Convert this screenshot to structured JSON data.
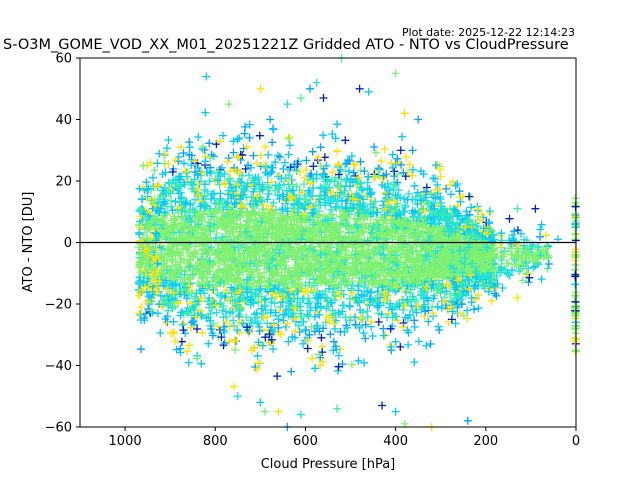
{
  "chart_data": {
    "type": "scatter",
    "plot_date": "Plot date: 2025-12-22 12:14:23",
    "title": "S-O3M_GOME_VOD_XX_M01_20251221Z Gridded ATO - NTO vs CloudPressure",
    "xlabel": "Cloud Pressure [hPa]",
    "ylabel": "ATO - NTO [DU]",
    "xlim": [
      1100,
      0
    ],
    "ylim": [
      -60,
      60
    ],
    "xticks": [
      1000,
      800,
      600,
      400,
      200,
      0
    ],
    "yticks": [
      60,
      40,
      20,
      0,
      -20,
      -40,
      -60
    ],
    "reference_line_y": 0,
    "grid": false,
    "marker": "plus",
    "colors": [
      "#00c8ff",
      "#20e0d8",
      "#80f070",
      "#ffe000",
      "#00a0ff",
      "#0020c0",
      "#40f0a0"
    ],
    "density_profile": [
      {
        "x": 960,
        "ymin": -22,
        "ymax": 18
      },
      {
        "x": 900,
        "ymin": -26,
        "ymax": 24
      },
      {
        "x": 800,
        "ymin": -30,
        "ymax": 26
      },
      {
        "x": 700,
        "ymin": -30,
        "ymax": 26
      },
      {
        "x": 600,
        "ymin": -30,
        "ymax": 24
      },
      {
        "x": 500,
        "ymin": -28,
        "ymax": 24
      },
      {
        "x": 400,
        "ymin": -28,
        "ymax": 22
      },
      {
        "x": 300,
        "ymin": -22,
        "ymax": 16
      },
      {
        "x": 200,
        "ymin": -16,
        "ymax": 6
      },
      {
        "x": 100,
        "ymin": -10,
        "ymax": 2
      }
    ],
    "outliers": [
      {
        "x": 820,
        "y": 54
      },
      {
        "x": 770,
        "y": 45
      },
      {
        "x": 700,
        "y": 50
      },
      {
        "x": 590,
        "y": 50
      },
      {
        "x": 575,
        "y": 52
      },
      {
        "x": 520,
        "y": 60
      },
      {
        "x": 480,
        "y": 50
      },
      {
        "x": 460,
        "y": 49
      },
      {
        "x": 400,
        "y": 55
      },
      {
        "x": 380,
        "y": 42
      },
      {
        "x": 350,
        "y": 40
      },
      {
        "x": 640,
        "y": 45
      },
      {
        "x": 610,
        "y": 47
      },
      {
        "x": 560,
        "y": 47
      },
      {
        "x": 700,
        "y": -52
      },
      {
        "x": 690,
        "y": -55
      },
      {
        "x": 660,
        "y": -55
      },
      {
        "x": 640,
        "y": -60
      },
      {
        "x": 610,
        "y": -56
      },
      {
        "x": 530,
        "y": -54
      },
      {
        "x": 430,
        "y": -53
      },
      {
        "x": 400,
        "y": -55
      },
      {
        "x": 380,
        "y": -59
      },
      {
        "x": 320,
        "y": -60
      },
      {
        "x": 240,
        "y": -58
      },
      {
        "x": 750,
        "y": -50
      },
      {
        "x": 130,
        "y": 11
      },
      {
        "x": 90,
        "y": 11
      },
      {
        "x": 40,
        "y": 1
      },
      {
        "x": 110,
        "y": -10
      },
      {
        "x": 130,
        "y": -18
      },
      {
        "x": 60,
        "y": -7
      }
    ],
    "edge_column": {
      "x": 0,
      "ymin": -36,
      "ymax": 15
    }
  }
}
